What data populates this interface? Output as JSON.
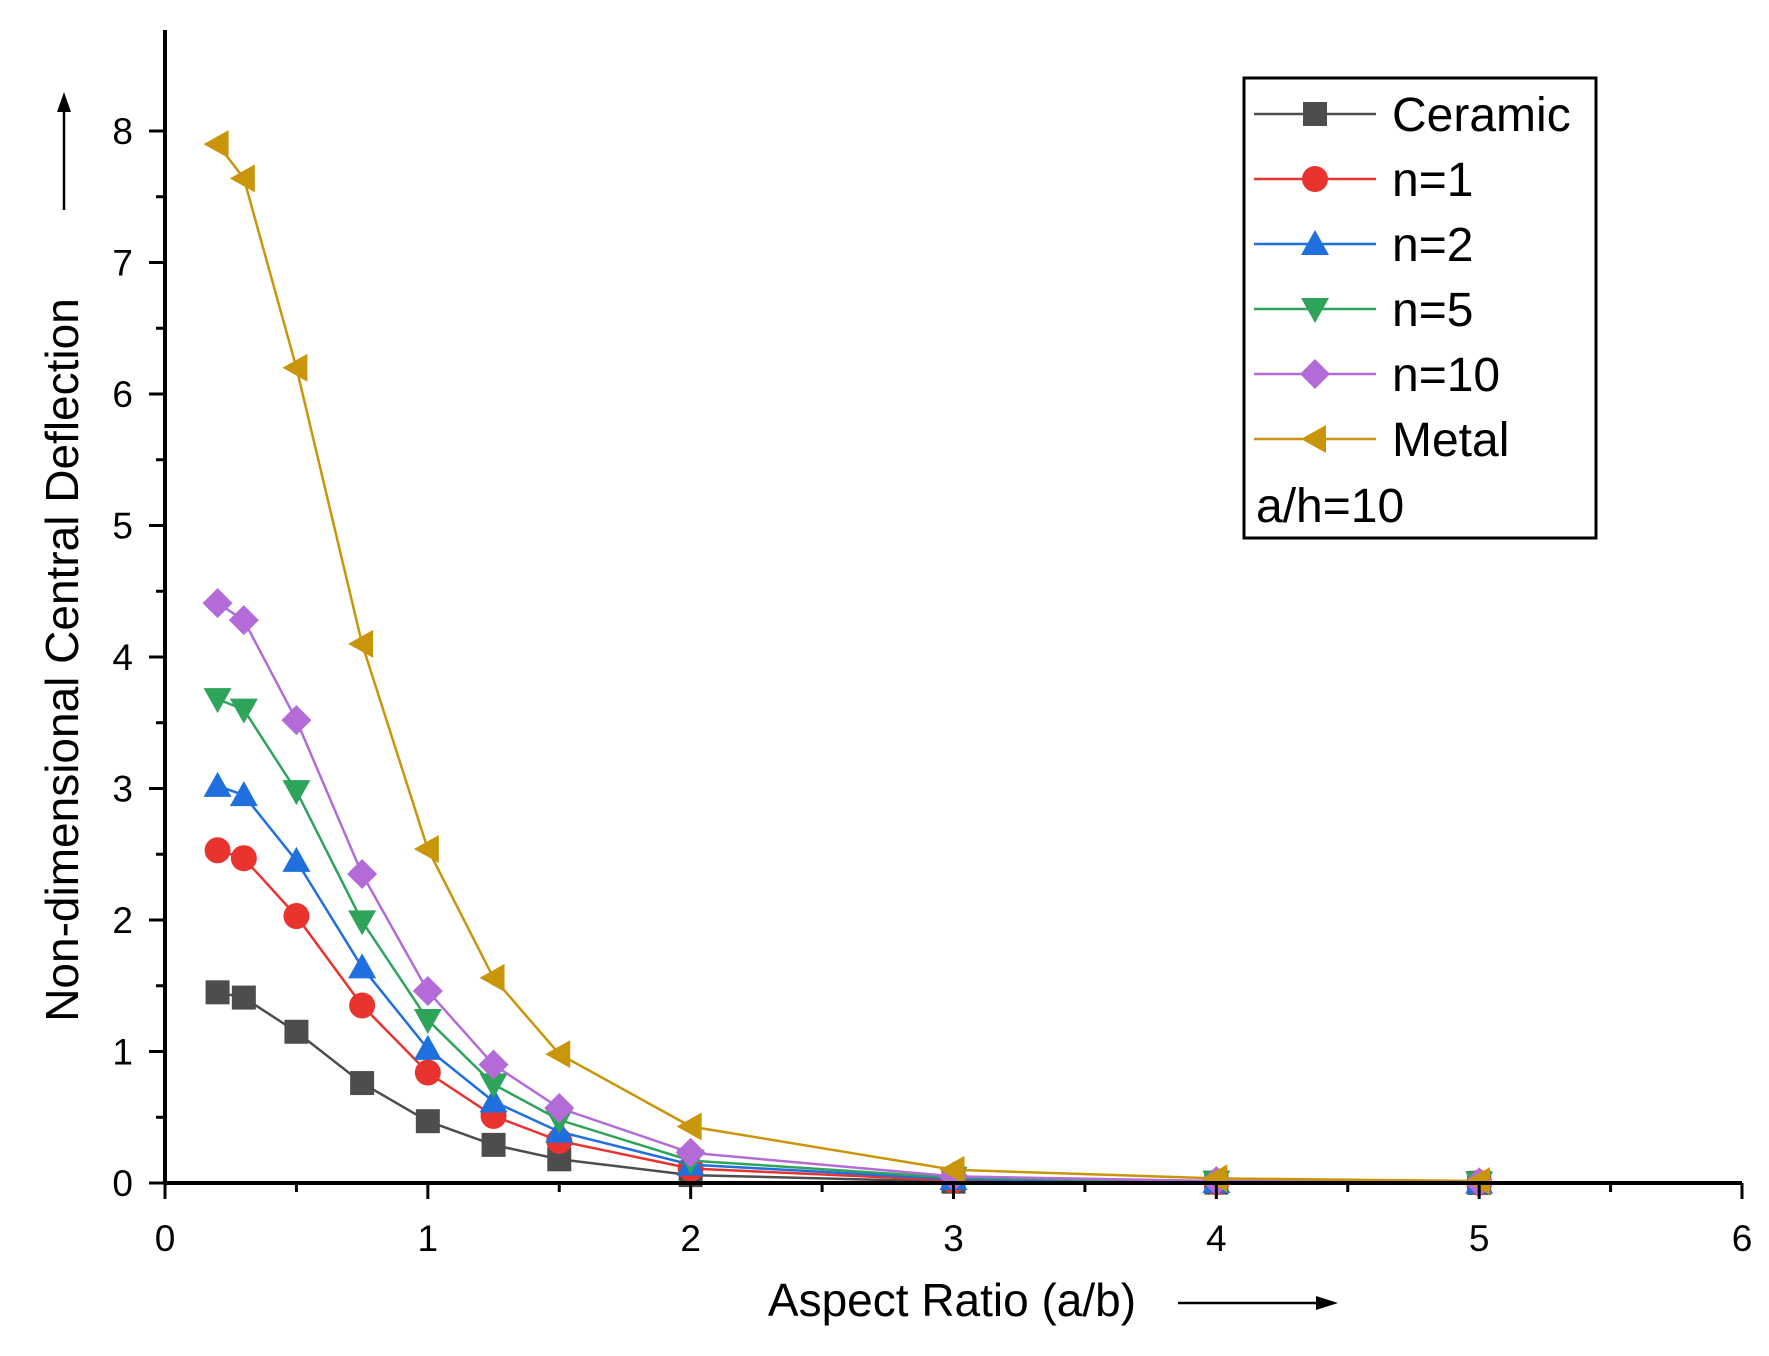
{
  "chart_data": {
    "type": "line",
    "title": "",
    "xlabel": "Aspect Ratio (a/b)",
    "ylabel": "Non-dimensional Central Deflection",
    "xlim": [
      0,
      6
    ],
    "ylim": [
      0,
      8.5
    ],
    "xticks": [
      0,
      1,
      2,
      3,
      4,
      5,
      6
    ],
    "yticks": [
      0,
      1,
      2,
      3,
      4,
      5,
      6,
      7,
      8
    ],
    "x": [
      0.2,
      0.3,
      0.5,
      0.75,
      1,
      1.25,
      1.5,
      2,
      3,
      4,
      5
    ],
    "series": [
      {
        "name": "Ceramic",
        "color": "#4d4d4d",
        "marker": "square",
        "values": [
          1.45,
          1.41,
          1.15,
          0.76,
          0.47,
          0.29,
          0.18,
          0.06,
          0.01,
          0.003,
          0.001
        ]
      },
      {
        "name": "n=1",
        "color": "#e8332f",
        "marker": "circle",
        "values": [
          2.53,
          2.47,
          2.03,
          1.35,
          0.84,
          0.51,
          0.32,
          0.11,
          0.02,
          0.006,
          0.002
        ]
      },
      {
        "name": "n=2",
        "color": "#1f6fde",
        "marker": "triangle-up",
        "values": [
          3.02,
          2.95,
          2.45,
          1.64,
          1.02,
          0.62,
          0.39,
          0.14,
          0.03,
          0.008,
          0.003
        ]
      },
      {
        "name": "n=5",
        "color": "#2ea35a",
        "marker": "triangle-down",
        "values": [
          3.68,
          3.6,
          2.98,
          1.99,
          1.24,
          0.75,
          0.48,
          0.17,
          0.04,
          0.01,
          0.004
        ]
      },
      {
        "name": "n=10",
        "color": "#b36bd8",
        "marker": "diamond",
        "values": [
          4.41,
          4.28,
          3.52,
          2.35,
          1.46,
          0.9,
          0.57,
          0.23,
          0.05,
          0.015,
          0.005
        ]
      },
      {
        "name": "Metal",
        "color": "#c9950a",
        "marker": "triangle-left",
        "values": [
          7.9,
          7.64,
          6.2,
          4.1,
          2.54,
          1.56,
          0.98,
          0.43,
          0.1,
          0.035,
          0.015
        ]
      }
    ],
    "annotation": "a/h=10",
    "legend_position": "top-right"
  }
}
